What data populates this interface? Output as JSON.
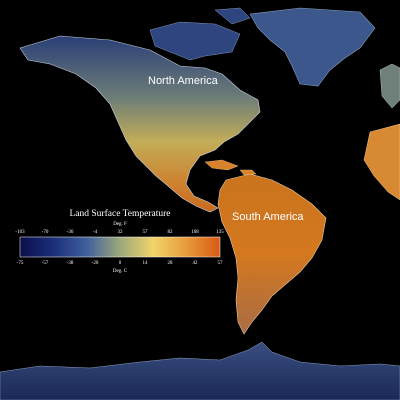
{
  "map": {
    "regions": [
      {
        "name": "North America"
      },
      {
        "name": "South America"
      }
    ]
  },
  "legend": {
    "title": "Land Surface Temperature",
    "unit_top": "Deg. F",
    "unit_bottom": "Deg. C",
    "ticks_f": [
      "-103",
      "-70",
      "-36",
      "-4",
      "32",
      "57",
      "82",
      "108",
      "135"
    ],
    "ticks_c": [
      "-75",
      "-57",
      "-38",
      "-20",
      "0",
      "14",
      "28",
      "42",
      "57"
    ],
    "colors": [
      "#0b0e4a",
      "#1c2f7a",
      "#3f5f9c",
      "#9ca87c",
      "#f2d46a",
      "#e79a3a",
      "#d85a14"
    ]
  }
}
